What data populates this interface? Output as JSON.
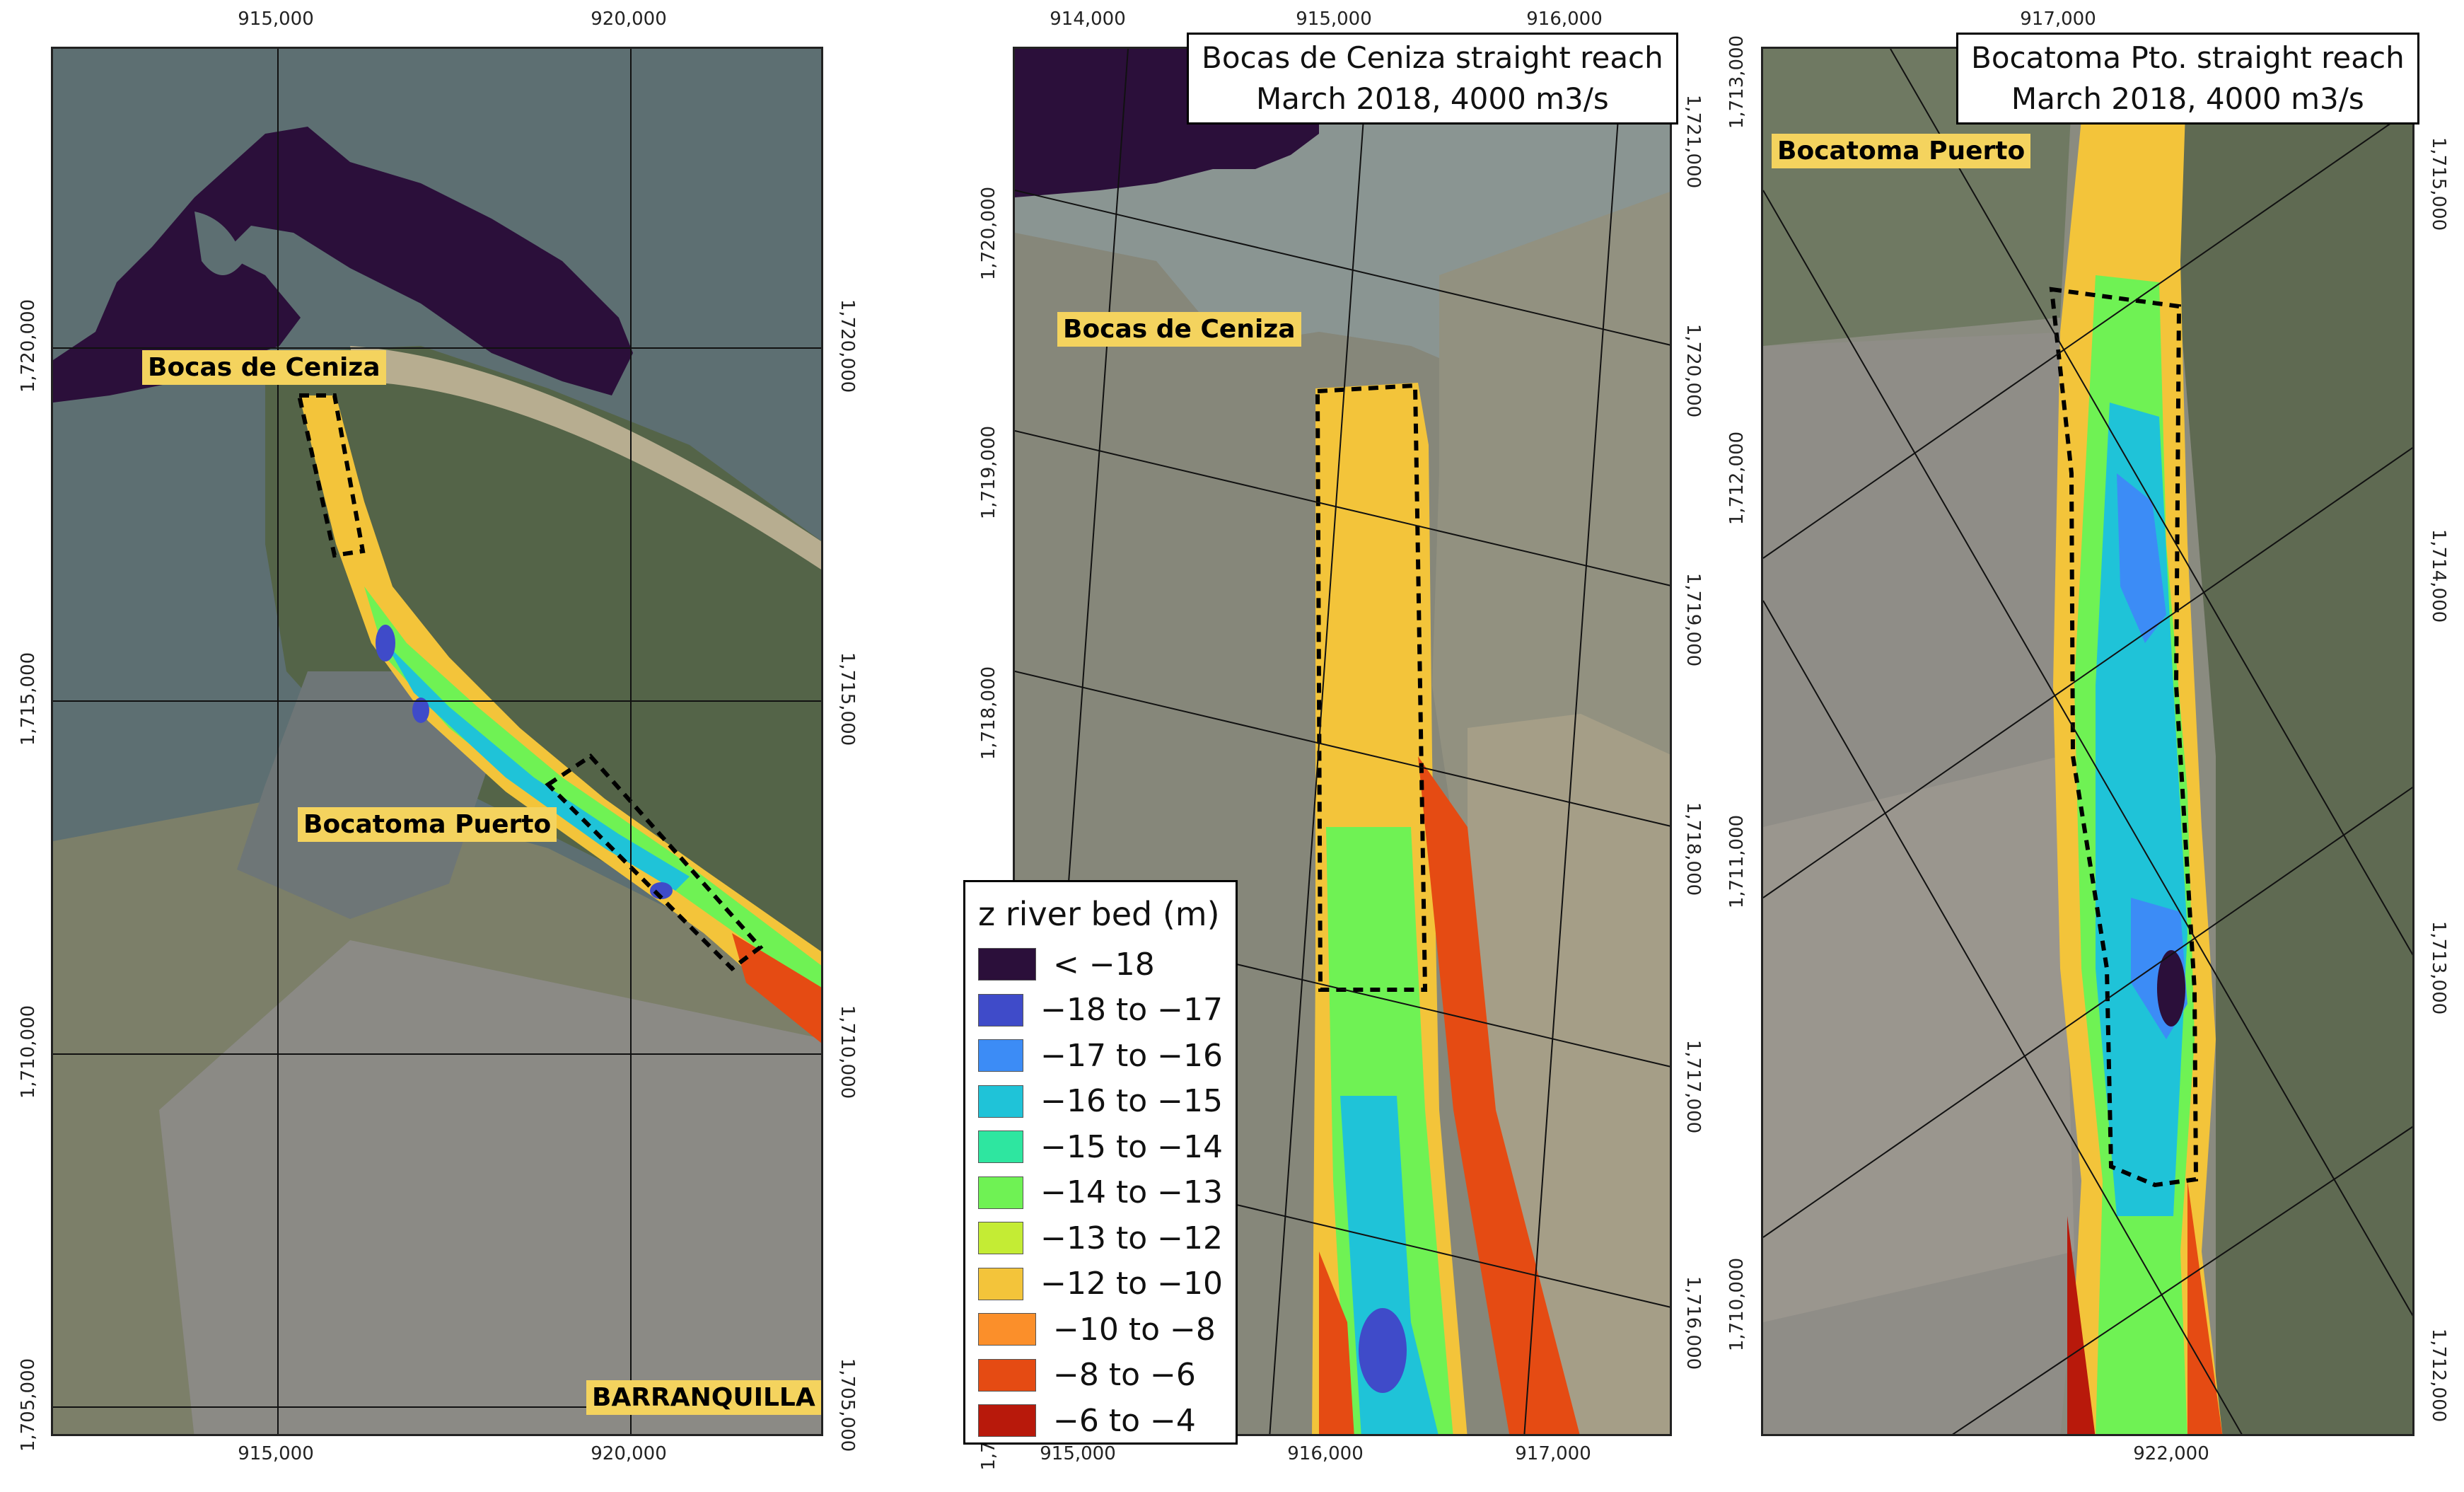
{
  "panels": {
    "overview": {
      "top_ticks": [
        "915,000",
        "920,000"
      ],
      "bottom_ticks": [
        "915,000",
        "920,000"
      ],
      "left_ticks": [
        "1,720,000",
        "1,715,000",
        "1,710,000",
        "1,705,000"
      ],
      "right_ticks": [
        "1,720,000",
        "1,715,000",
        "1,710,000",
        "1,705,000"
      ],
      "labels": {
        "bocas": "Bocas de Ceniza",
        "bocatoma": "Bocatoma Puerto",
        "city": "BARRANQUILLA"
      }
    },
    "bocas": {
      "title_line1": "Bocas de Ceniza straight reach",
      "title_line2": "March 2018, 4000 m3/s",
      "top_ticks": [
        "914,000",
        "915,000",
        "916,000"
      ],
      "bottom_ticks": [
        "915,000",
        "916,000",
        "917,000"
      ],
      "left_ticks": [
        "1,720,000",
        "1,719,000",
        "1,718,000",
        "1,7"
      ],
      "right_ticks": [
        "1,721,000",
        "1,720,000",
        "1,719,000",
        "1,718,000",
        "1,717,000",
        "1,716,000"
      ],
      "labels": {
        "bocas": "Bocas de Ceniza"
      }
    },
    "bocatoma": {
      "title_line1": "Bocatoma Pto. straight reach",
      "title_line2": "March 2018, 4000 m3/s",
      "top_ticks": [
        "917,000"
      ],
      "bottom_ticks": [
        "922,000"
      ],
      "left_ticks": [
        "1,713,000",
        "1,712,000",
        "1,711,000",
        "1,710,000"
      ],
      "right_ticks": [
        "1,715,000",
        "1,714,000",
        "1,713,000",
        "1,712,000"
      ],
      "labels": {
        "bocatoma": "Bocatoma Puerto"
      }
    }
  },
  "legend": {
    "title": "z river bed (m)",
    "items": [
      {
        "label": "< −18",
        "color": "#2b0f3a"
      },
      {
        "label": "−18 to −17",
        "color": "#3f4bc9"
      },
      {
        "label": "−17 to −16",
        "color": "#3c8cf6"
      },
      {
        "label": "−16 to −15",
        "color": "#1fc3d8"
      },
      {
        "label": "−15 to −14",
        "color": "#2ee6a0"
      },
      {
        "label": "−14 to −13",
        "color": "#6ff254"
      },
      {
        "label": "−13 to −12",
        "color": "#c4ec34"
      },
      {
        "label": "−12 to −10",
        "color": "#f3c43a"
      },
      {
        "label": "−10 to −8",
        "color": "#fb8f2a"
      },
      {
        "label": "−8 to −6",
        "color": "#e54b13"
      },
      {
        "label": "−6 to −4",
        "color": "#b8190b"
      }
    ]
  }
}
